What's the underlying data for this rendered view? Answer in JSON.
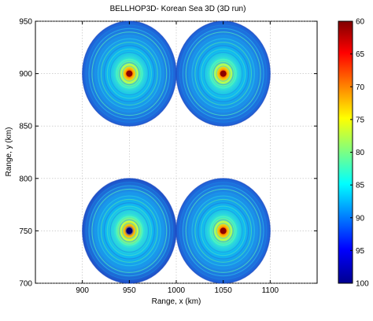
{
  "chart_data": {
    "type": "heatmap",
    "title": "BELLHOP3D- Korean Sea 3D (3D run)",
    "xlabel": "Range, x (km)",
    "ylabel": "Range, y (km)",
    "xlim": [
      850,
      1150
    ],
    "ylim": [
      700,
      950
    ],
    "xticks": [
      "900",
      "950",
      "1000",
      "1050",
      "1100"
    ],
    "yticks": [
      "700",
      "750",
      "800",
      "850",
      "900",
      "950"
    ],
    "grid": true,
    "colormap": "jet",
    "colorbar": {
      "range": [
        60,
        100
      ],
      "reversed": true,
      "ticks": [
        "60",
        "65",
        "70",
        "75",
        "80",
        "85",
        "90",
        "95",
        "100"
      ]
    },
    "sources": [
      {
        "x": 950,
        "y": 900,
        "radius_km": 50
      },
      {
        "x": 1050,
        "y": 900,
        "radius_km": 50
      },
      {
        "x": 950,
        "y": 750,
        "radius_km": 50
      },
      {
        "x": 1050,
        "y": 750,
        "radius_km": 50
      }
    ]
  }
}
